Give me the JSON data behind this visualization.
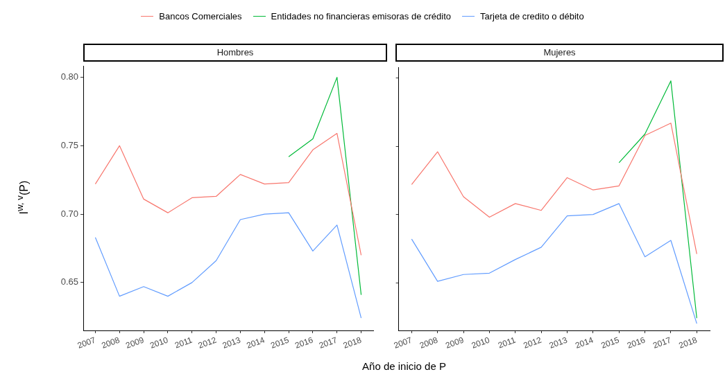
{
  "chart_data": [
    {
      "type": "line",
      "title": "Hombres",
      "xlabel": "Año de inicio de P",
      "ylabel": "I$^{w, v}$(P)",
      "legend": "top",
      "grid": false,
      "categories": [
        "2007",
        "2008",
        "2009",
        "2010",
        "2011",
        "2012",
        "2013",
        "2014",
        "2015",
        "2016",
        "2017",
        "2018"
      ],
      "ylim": [
        0.615,
        0.808
      ],
      "yticks": [
        0.65,
        {
          "value": 0.7,
          "label": "0.70"
        },
        0.75,
        {
          "value": 0.8,
          "label": "0.80"
        }
      ],
      "series": [
        {
          "name": "Bancos Comerciales",
          "color": "#f8766d",
          "values": [
            0.722,
            0.75,
            0.711,
            0.701,
            0.712,
            0.713,
            0.729,
            0.722,
            0.723,
            0.747,
            0.759,
            0.67
          ]
        },
        {
          "name": "Entidades no financieras emisoras de crédito",
          "color": "#00ba38",
          "values": [
            null,
            null,
            null,
            null,
            null,
            null,
            null,
            null,
            0.742,
            0.755,
            0.8,
            0.641
          ]
        },
        {
          "name": "Tarjeta de credito o débito",
          "color": "#619cff",
          "values": [
            0.683,
            0.64,
            0.647,
            0.64,
            0.65,
            0.666,
            0.696,
            0.7,
            0.701,
            0.673,
            0.692,
            0.624
          ]
        }
      ]
    },
    {
      "type": "line",
      "title": "Mujeres",
      "grid": false,
      "tick_labels": "x",
      "categories": [
        "2007",
        "2008",
        "2009",
        "2010",
        "2011",
        "2012",
        "2013",
        "2014",
        "2015",
        "2016",
        "2017",
        "2018"
      ],
      "ylim": [
        0.615,
        0.808
      ],
      "yticks": [
        {
          "value": 0.65,
          "label": null
        },
        {
          "value": 0.7,
          "label": null
        },
        {
          "value": 0.75,
          "label": null
        },
        {
          "value": 0.8,
          "label": null
        }
      ],
      "series": [
        {
          "color": "#f8766d",
          "values": [
            0.722,
            0.746,
            0.713,
            0.698,
            0.708,
            0.703,
            0.727,
            0.718,
            0.721,
            0.758,
            0.767,
            0.671
          ]
        },
        {
          "color": "#00ba38",
          "values": [
            null,
            null,
            null,
            null,
            null,
            null,
            null,
            null,
            0.738,
            0.759,
            0.798,
            0.624
          ]
        },
        {
          "color": "#619cff",
          "values": [
            0.682,
            0.651,
            0.656,
            0.657,
            0.667,
            0.676,
            0.699,
            0.7,
            0.708,
            0.669,
            0.681,
            0.62
          ]
        }
      ]
    }
  ]
}
